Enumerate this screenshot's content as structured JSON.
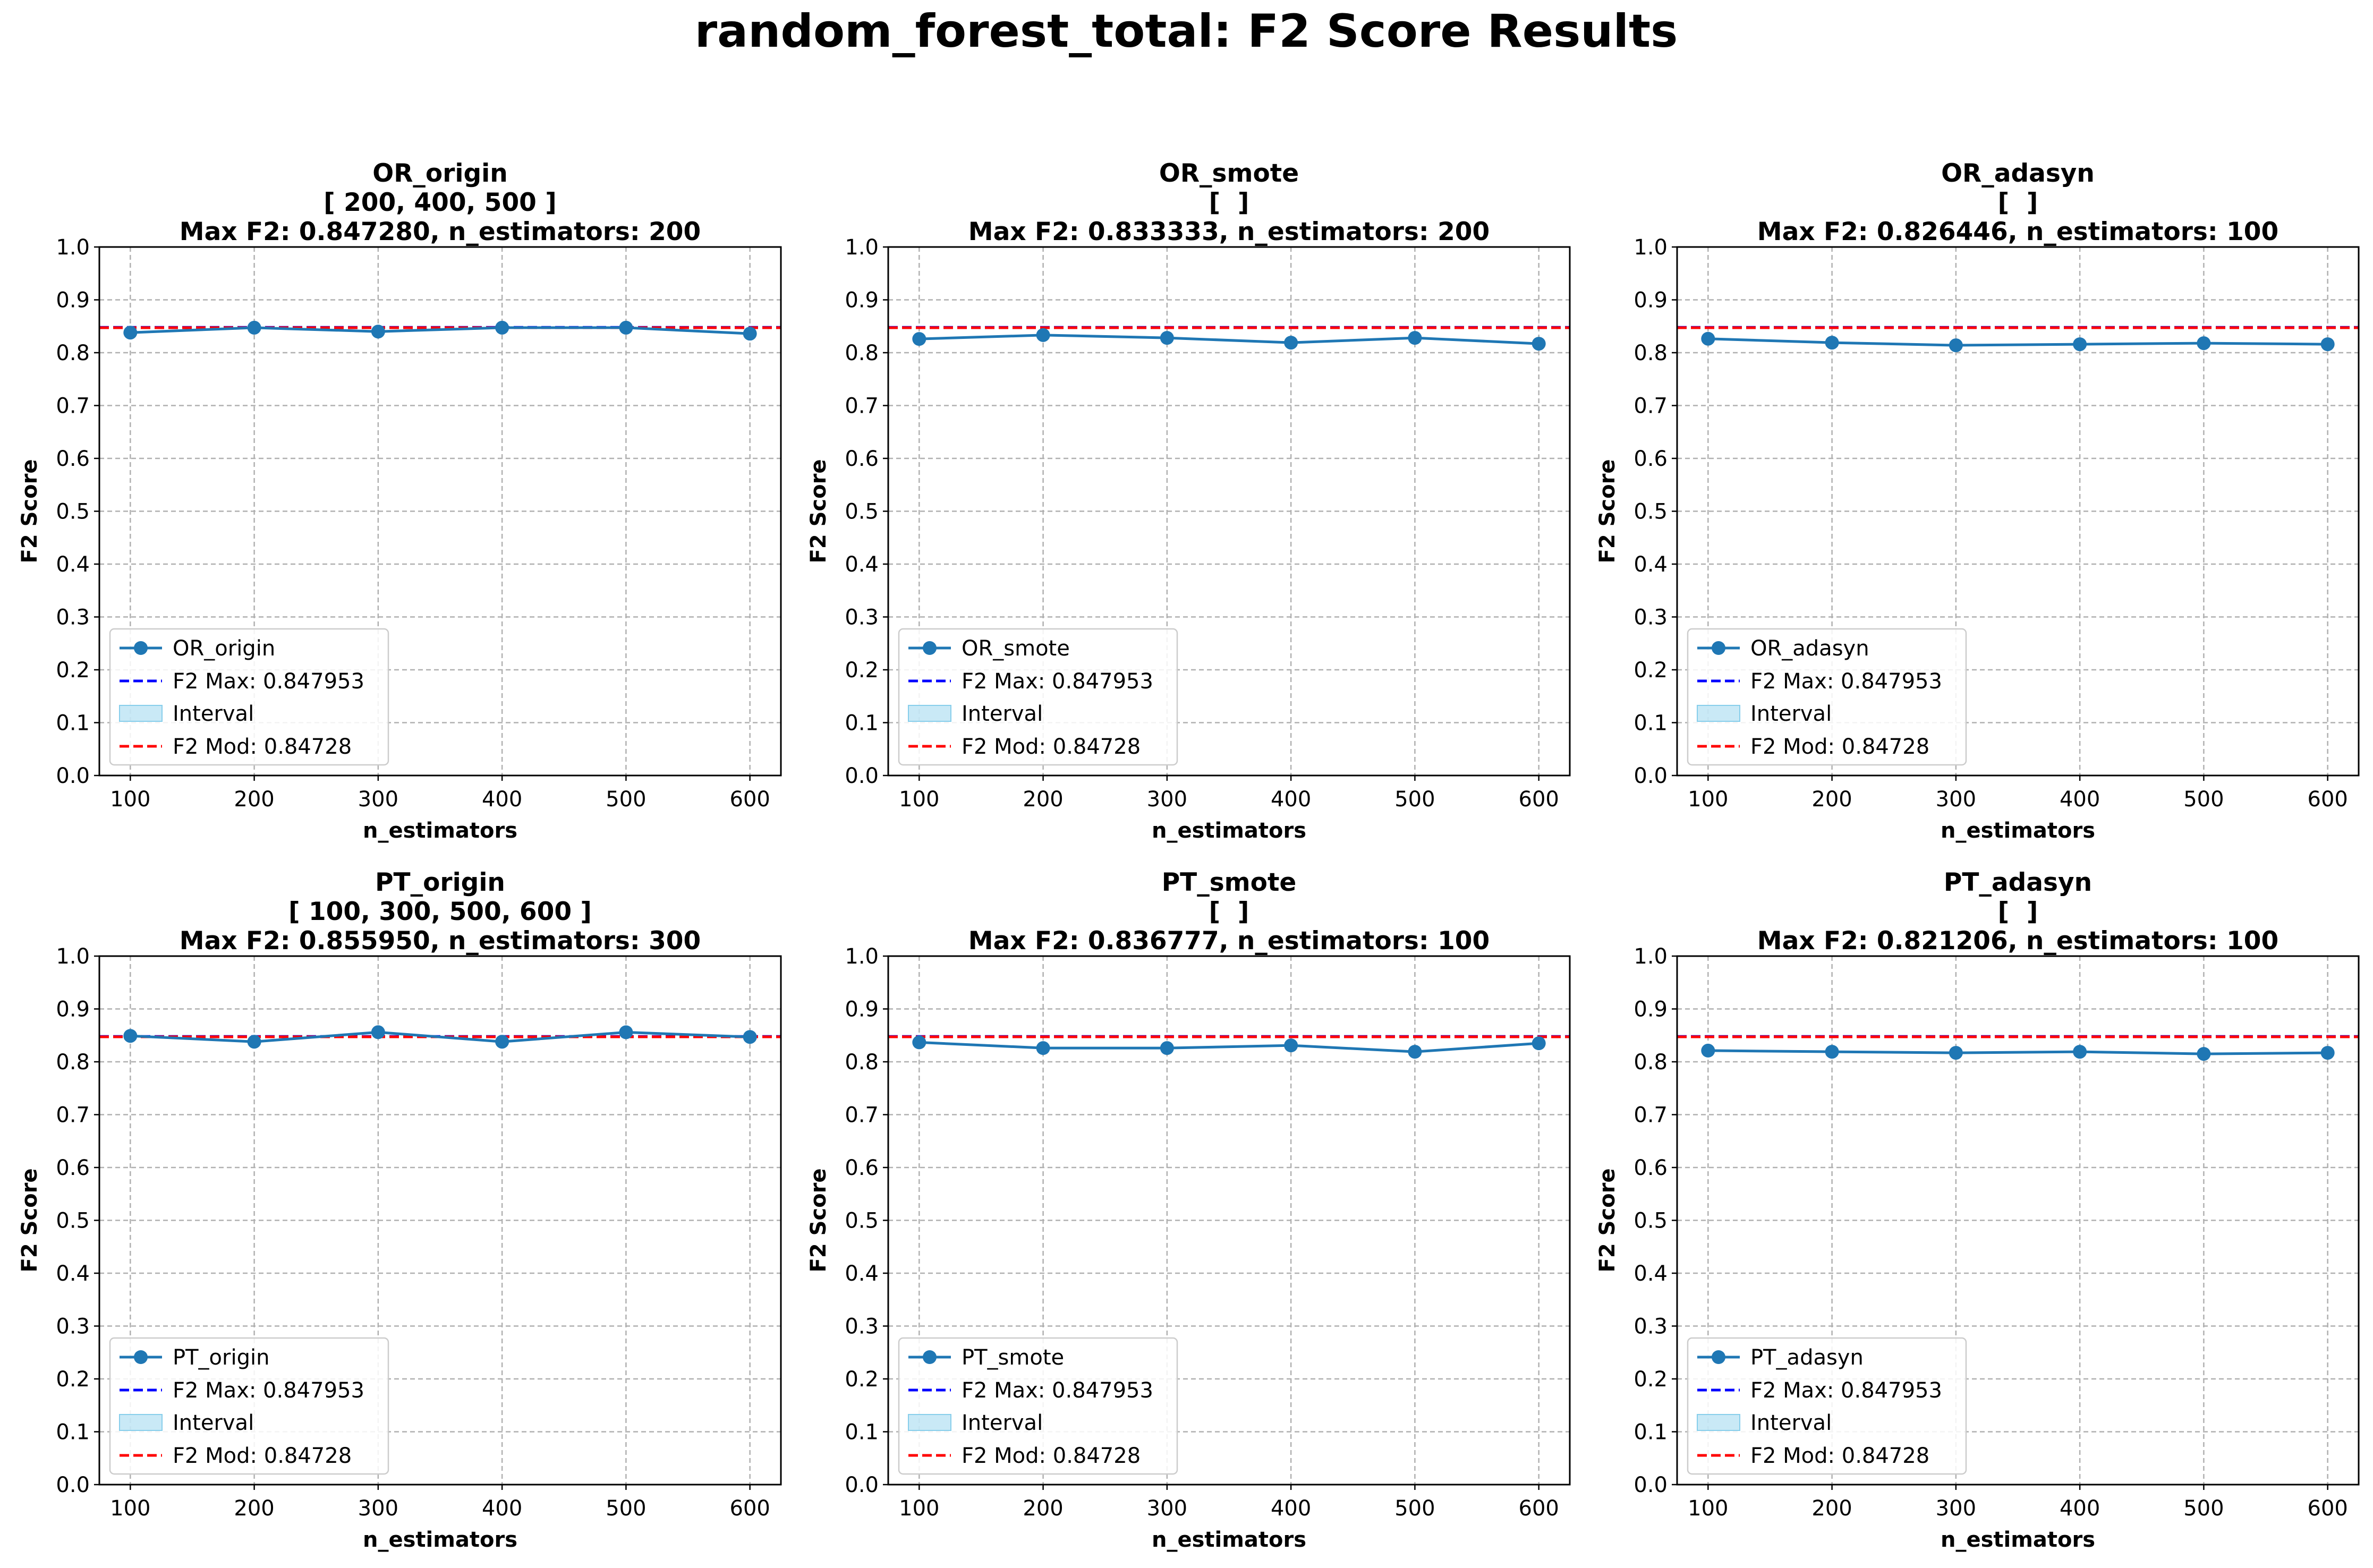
{
  "figure": {
    "title": "random_forest_total: F2 Score Results"
  },
  "colors": {
    "series": "#1f77b4",
    "f2_max": "#0000ff",
    "f2_mod": "#ff0000",
    "interval_fill": "#87ceeb",
    "grid": "#b0b0b0"
  },
  "chart_data": [
    {
      "type": "line",
      "title": "OR_origin",
      "subtitle": "[ 200, 400, 500 ]",
      "max_label": "Max F2: 0.847280, n_estimators: 200",
      "xlabel": "n_estimators",
      "ylabel": "F2 Score",
      "x": [
        100,
        200,
        300,
        400,
        500,
        600
      ],
      "xlim": [
        75,
        625
      ],
      "ylim": [
        0,
        1.0
      ],
      "xticks": [
        100,
        200,
        300,
        400,
        500,
        600
      ],
      "yticks": [
        0.0,
        0.1,
        0.2,
        0.3,
        0.4,
        0.5,
        0.6,
        0.7,
        0.8,
        0.9,
        1.0
      ],
      "grid": true,
      "legend_position": "lower-left",
      "series": [
        {
          "name": "OR_origin",
          "values": [
            0.838,
            0.8473,
            0.84,
            0.8473,
            0.8473,
            0.836
          ]
        }
      ],
      "hlines": [
        {
          "name": "F2 Max: 0.847953",
          "y": 0.847953,
          "style": "dashed",
          "color": "#0000ff"
        },
        {
          "name": "F2 Mod: 0.84728",
          "y": 0.84728,
          "style": "dashed",
          "color": "#ff0000"
        }
      ],
      "band": {
        "name": "Interval"
      }
    },
    {
      "type": "line",
      "title": "OR_smote",
      "subtitle": "[  ]",
      "max_label": "Max F2: 0.833333, n_estimators: 200",
      "xlabel": "n_estimators",
      "ylabel": "F2 Score",
      "x": [
        100,
        200,
        300,
        400,
        500,
        600
      ],
      "xlim": [
        75,
        625
      ],
      "ylim": [
        0,
        1.0
      ],
      "xticks": [
        100,
        200,
        300,
        400,
        500,
        600
      ],
      "yticks": [
        0.0,
        0.1,
        0.2,
        0.3,
        0.4,
        0.5,
        0.6,
        0.7,
        0.8,
        0.9,
        1.0
      ],
      "grid": true,
      "legend_position": "lower-left",
      "series": [
        {
          "name": "OR_smote",
          "values": [
            0.826,
            0.8333,
            0.828,
            0.819,
            0.828,
            0.817
          ]
        }
      ],
      "hlines": [
        {
          "name": "F2 Max: 0.847953",
          "y": 0.847953,
          "style": "dashed",
          "color": "#0000ff"
        },
        {
          "name": "F2 Mod: 0.84728",
          "y": 0.84728,
          "style": "dashed",
          "color": "#ff0000"
        }
      ],
      "band": {
        "name": "Interval"
      }
    },
    {
      "type": "line",
      "title": "OR_adasyn",
      "subtitle": "[  ]",
      "max_label": "Max F2: 0.826446, n_estimators: 100",
      "xlabel": "n_estimators",
      "ylabel": "F2 Score",
      "x": [
        100,
        200,
        300,
        400,
        500,
        600
      ],
      "xlim": [
        75,
        625
      ],
      "ylim": [
        0,
        1.0
      ],
      "xticks": [
        100,
        200,
        300,
        400,
        500,
        600
      ],
      "yticks": [
        0.0,
        0.1,
        0.2,
        0.3,
        0.4,
        0.5,
        0.6,
        0.7,
        0.8,
        0.9,
        1.0
      ],
      "grid": true,
      "legend_position": "lower-left",
      "series": [
        {
          "name": "OR_adasyn",
          "values": [
            0.8264,
            0.819,
            0.814,
            0.816,
            0.818,
            0.816
          ]
        }
      ],
      "hlines": [
        {
          "name": "F2 Max: 0.847953",
          "y": 0.847953,
          "style": "dashed",
          "color": "#0000ff"
        },
        {
          "name": "F2 Mod: 0.84728",
          "y": 0.84728,
          "style": "dashed",
          "color": "#ff0000"
        }
      ],
      "band": {
        "name": "Interval"
      }
    },
    {
      "type": "line",
      "title": "PT_origin",
      "subtitle": "[ 100, 300, 500, 600 ]",
      "max_label": "Max F2: 0.855950, n_estimators: 300",
      "xlabel": "n_estimators",
      "ylabel": "F2 Score",
      "x": [
        100,
        200,
        300,
        400,
        500,
        600
      ],
      "xlim": [
        75,
        625
      ],
      "ylim": [
        0,
        1.0
      ],
      "xticks": [
        100,
        200,
        300,
        400,
        500,
        600
      ],
      "yticks": [
        0.0,
        0.1,
        0.2,
        0.3,
        0.4,
        0.5,
        0.6,
        0.7,
        0.8,
        0.9,
        1.0
      ],
      "grid": true,
      "legend_position": "lower-left",
      "series": [
        {
          "name": "PT_origin",
          "values": [
            0.849,
            0.838,
            0.856,
            0.838,
            0.8559,
            0.847
          ]
        }
      ],
      "hlines": [
        {
          "name": "F2 Max: 0.847953",
          "y": 0.847953,
          "style": "dashed",
          "color": "#0000ff"
        },
        {
          "name": "F2 Mod: 0.84728",
          "y": 0.84728,
          "style": "dashed",
          "color": "#ff0000"
        }
      ],
      "band": {
        "name": "Interval"
      }
    },
    {
      "type": "line",
      "title": "PT_smote",
      "subtitle": "[  ]",
      "max_label": "Max F2: 0.836777, n_estimators: 100",
      "xlabel": "n_estimators",
      "ylabel": "F2 Score",
      "x": [
        100,
        200,
        300,
        400,
        500,
        600
      ],
      "xlim": [
        75,
        625
      ],
      "ylim": [
        0,
        1.0
      ],
      "xticks": [
        100,
        200,
        300,
        400,
        500,
        600
      ],
      "yticks": [
        0.0,
        0.1,
        0.2,
        0.3,
        0.4,
        0.5,
        0.6,
        0.7,
        0.8,
        0.9,
        1.0
      ],
      "grid": true,
      "legend_position": "lower-left",
      "series": [
        {
          "name": "PT_smote",
          "values": [
            0.8368,
            0.826,
            0.826,
            0.831,
            0.819,
            0.835
          ]
        }
      ],
      "hlines": [
        {
          "name": "F2 Max: 0.847953",
          "y": 0.847953,
          "style": "dashed",
          "color": "#0000ff"
        },
        {
          "name": "F2 Mod: 0.84728",
          "y": 0.84728,
          "style": "dashed",
          "color": "#ff0000"
        }
      ],
      "band": {
        "name": "Interval"
      }
    },
    {
      "type": "line",
      "title": "PT_adasyn",
      "subtitle": "[  ]",
      "max_label": "Max F2: 0.821206, n_estimators: 100",
      "xlabel": "n_estimators",
      "ylabel": "F2 Score",
      "x": [
        100,
        200,
        300,
        400,
        500,
        600
      ],
      "xlim": [
        75,
        625
      ],
      "ylim": [
        0,
        1.0
      ],
      "xticks": [
        100,
        200,
        300,
        400,
        500,
        600
      ],
      "yticks": [
        0.0,
        0.1,
        0.2,
        0.3,
        0.4,
        0.5,
        0.6,
        0.7,
        0.8,
        0.9,
        1.0
      ],
      "grid": true,
      "legend_position": "lower-left",
      "series": [
        {
          "name": "PT_adasyn",
          "values": [
            0.8212,
            0.819,
            0.817,
            0.819,
            0.815,
            0.817
          ]
        }
      ],
      "hlines": [
        {
          "name": "F2 Max: 0.847953",
          "y": 0.847953,
          "style": "dashed",
          "color": "#0000ff"
        },
        {
          "name": "F2 Mod: 0.84728",
          "y": 0.84728,
          "style": "dashed",
          "color": "#ff0000"
        }
      ],
      "band": {
        "name": "Interval"
      }
    }
  ]
}
